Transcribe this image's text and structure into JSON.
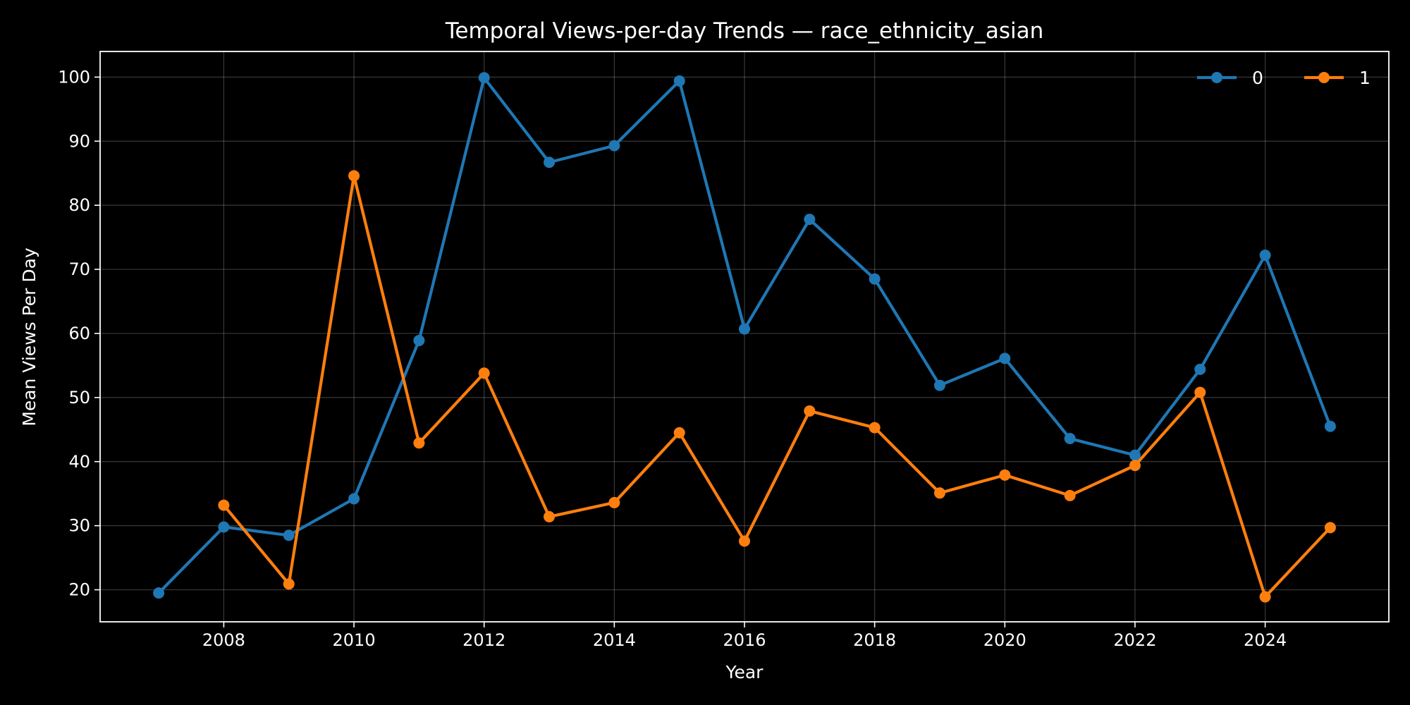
{
  "chart_data": {
    "type": "line",
    "title": "Temporal Views-per-day Trends — race_ethnicity_asian",
    "xlabel": "Year",
    "ylabel": "Mean Views Per Day",
    "xlim": [
      2006.1,
      2025.9
    ],
    "ylim": [
      15,
      104
    ],
    "x_ticks": [
      2008,
      2010,
      2012,
      2014,
      2016,
      2018,
      2020,
      2022,
      2024
    ],
    "y_ticks": [
      20,
      30,
      40,
      50,
      60,
      70,
      80,
      90,
      100
    ],
    "grid": true,
    "legend_position": "top-right",
    "background": "#000000",
    "series": [
      {
        "name": "0",
        "color": "#1f77b4",
        "points": [
          {
            "x": 2007,
            "y": 19.5
          },
          {
            "x": 2008,
            "y": 29.8
          },
          {
            "x": 2009,
            "y": 28.5
          },
          {
            "x": 2010,
            "y": 34.2
          },
          {
            "x": 2011,
            "y": 58.9
          },
          {
            "x": 2012,
            "y": 99.9
          },
          {
            "x": 2013,
            "y": 86.7
          },
          {
            "x": 2014,
            "y": 89.3
          },
          {
            "x": 2015,
            "y": 99.4
          },
          {
            "x": 2016,
            "y": 60.7
          },
          {
            "x": 2017,
            "y": 77.8
          },
          {
            "x": 2018,
            "y": 68.5
          },
          {
            "x": 2019,
            "y": 51.9
          },
          {
            "x": 2020,
            "y": 56.1
          },
          {
            "x": 2021,
            "y": 43.6
          },
          {
            "x": 2022,
            "y": 41.0
          },
          {
            "x": 2023,
            "y": 54.4
          },
          {
            "x": 2024,
            "y": 72.2
          },
          {
            "x": 2025,
            "y": 45.5
          }
        ]
      },
      {
        "name": "1",
        "color": "#ff7f0e",
        "points": [
          {
            "x": 2008,
            "y": 33.2
          },
          {
            "x": 2009,
            "y": 20.9
          },
          {
            "x": 2010,
            "y": 84.6
          },
          {
            "x": 2011,
            "y": 42.9
          },
          {
            "x": 2012,
            "y": 53.8
          },
          {
            "x": 2013,
            "y": 31.4
          },
          {
            "x": 2014,
            "y": 33.6
          },
          {
            "x": 2015,
            "y": 44.5
          },
          {
            "x": 2016,
            "y": 27.6
          },
          {
            "x": 2017,
            "y": 47.9
          },
          {
            "x": 2018,
            "y": 45.3
          },
          {
            "x": 2019,
            "y": 35.1
          },
          {
            "x": 2020,
            "y": 37.9
          },
          {
            "x": 2021,
            "y": 34.7
          },
          {
            "x": 2022,
            "y": 39.4
          },
          {
            "x": 2023,
            "y": 50.8
          },
          {
            "x": 2024,
            "y": 18.9
          },
          {
            "x": 2025,
            "y": 29.7
          }
        ]
      }
    ]
  }
}
